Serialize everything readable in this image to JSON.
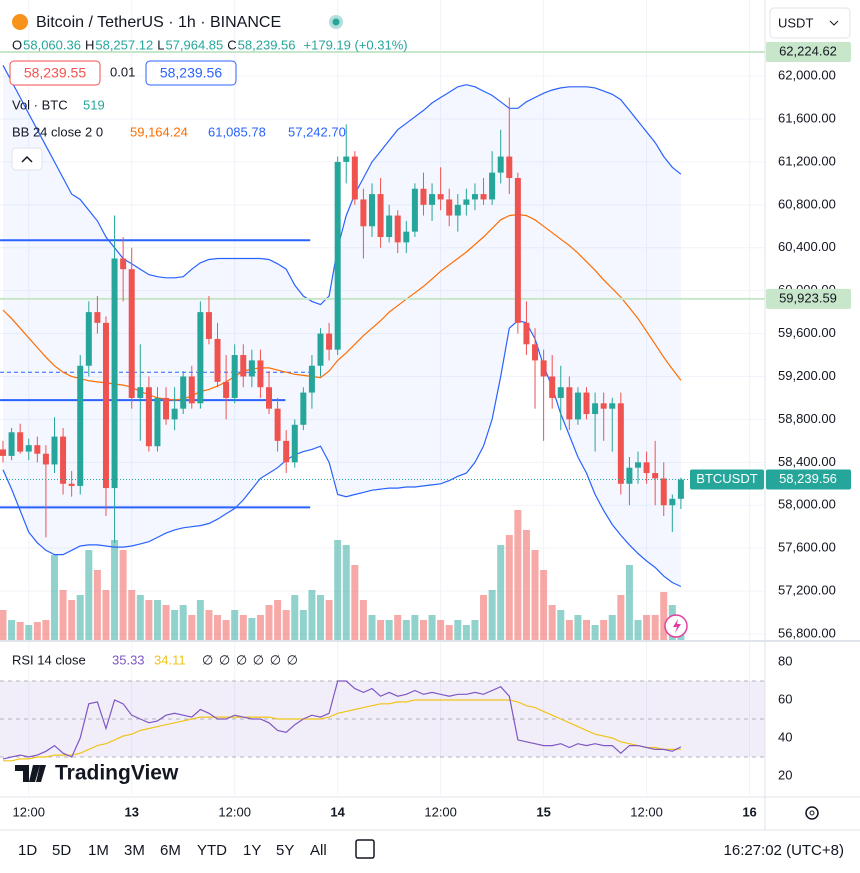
{
  "header": {
    "title": "Bitcoin / TetherUS · 1h · BINANCE",
    "ohlc": [
      {
        "key": "O",
        "value": "58,060.36"
      },
      {
        "key": "H",
        "value": "58,257.12"
      },
      {
        "key": "L",
        "value": "57,964.85"
      },
      {
        "key": "C",
        "value": "58,239.56"
      }
    ],
    "change": "+179.19 (+0.31%)"
  },
  "currency": "USDT",
  "order": {
    "sell": "58,239.55",
    "quantity": "0.01",
    "buy": "58,239.56"
  },
  "toolbar": {
    "ranges": [
      "1D",
      "5D",
      "1M",
      "3M",
      "6M",
      "YTD",
      "1Y",
      "5Y",
      "All"
    ],
    "clock": "16:27:02 (UTC+8)"
  },
  "brand": "TradingView",
  "chart_data": {
    "type": "candlestick",
    "open": [
      58520,
      58460,
      58680,
      58500,
      58560,
      58480,
      58380,
      58640,
      58200,
      58180,
      59300,
      59800,
      59700,
      58160,
      60300,
      60200,
      59000,
      59100,
      58550,
      59000,
      58800,
      58900,
      59200,
      58950,
      59800,
      59550,
      59150,
      59000,
      59400,
      59200,
      59350,
      59100,
      58900,
      58600,
      58400,
      58750,
      59050,
      59300,
      59600,
      59450,
      61200,
      61250,
      60850,
      60600,
      60900,
      60500,
      60700,
      60450,
      60550,
      60950,
      60800,
      60900,
      60850,
      60700,
      60800,
      60850,
      60900,
      60850,
      61100,
      61250,
      61050,
      59700,
      59500,
      59350,
      59200,
      59000,
      59100,
      58800,
      59050,
      58850,
      58950,
      58900,
      58950,
      58200,
      58350,
      58400,
      58300,
      58250,
      58000,
      58060.36
    ],
    "high": [
      58600,
      58720,
      58760,
      58620,
      58640,
      58560,
      58820,
      58720,
      58320,
      59400,
      59900,
      59950,
      59760,
      60700,
      60500,
      60400,
      59500,
      59200,
      59100,
      59100,
      59100,
      59250,
      59300,
      59900,
      59950,
      59700,
      59400,
      59500,
      59500,
      59450,
      59450,
      59250,
      59000,
      58700,
      58800,
      59100,
      59400,
      59650,
      59700,
      61250,
      61550,
      61300,
      60950,
      61000,
      61050,
      60800,
      60750,
      60650,
      61000,
      61100,
      61000,
      61150,
      60950,
      60900,
      60950,
      61000,
      61050,
      61300,
      61500,
      61800,
      61100,
      59900,
      59650,
      59450,
      59400,
      59300,
      59200,
      59100,
      59100,
      59050,
      59050,
      59000,
      59050,
      58450,
      58500,
      58500,
      58600,
      58400,
      58100,
      58257.12
    ],
    "low": [
      58400,
      58420,
      58480,
      58420,
      58400,
      57700,
      58300,
      58100,
      58080,
      58100,
      59200,
      59600,
      57900,
      57650,
      59900,
      58900,
      58600,
      58500,
      58500,
      58750,
      58700,
      58850,
      58900,
      58900,
      59500,
      59100,
      58800,
      58950,
      59100,
      59100,
      59000,
      58850,
      58500,
      58300,
      58350,
      58700,
      58900,
      59200,
      59350,
      59400,
      61000,
      60800,
      60300,
      60500,
      60400,
      60450,
      60350,
      60350,
      60500,
      60700,
      60650,
      60750,
      60600,
      60550,
      60700,
      60750,
      60800,
      60800,
      61000,
      60900,
      59600,
      59400,
      58900,
      58600,
      58900,
      58700,
      58700,
      58750,
      58800,
      58500,
      58600,
      58500,
      58100,
      58000,
      58200,
      58200,
      58000,
      57900,
      57750,
      57964.85
    ],
    "close": [
      58460,
      58680,
      58500,
      58560,
      58480,
      58380,
      58640,
      58200,
      58180,
      59300,
      59800,
      59700,
      58160,
      60300,
      60200,
      59000,
      59100,
      58550,
      59000,
      58800,
      58900,
      59200,
      58950,
      59800,
      59550,
      59150,
      59000,
      59400,
      59200,
      59350,
      59100,
      58900,
      58600,
      58400,
      58750,
      59050,
      59300,
      59600,
      59450,
      61200,
      61250,
      60850,
      60600,
      60900,
      60500,
      60700,
      60450,
      60550,
      60950,
      60800,
      60900,
      60850,
      60700,
      60800,
      60850,
      60900,
      60850,
      61100,
      61250,
      61050,
      59700,
      59500,
      59350,
      59200,
      59000,
      59100,
      58800,
      59050,
      58850,
      58950,
      58900,
      58950,
      58200,
      58350,
      58400,
      58300,
      58250,
      58000,
      58060,
      58239.56
    ],
    "up_color": "#26a69a",
    "down_color": "#ef5350",
    "ylim": [
      56744,
      62709
    ],
    "yticks": [
      {
        "value": 56800,
        "label": "56,800.00"
      },
      {
        "value": 57200,
        "label": "57,200.00"
      },
      {
        "value": 57600,
        "label": "57,600.00"
      },
      {
        "value": 58000,
        "label": "58,000.00"
      },
      {
        "value": 58400,
        "label": "58,400.00"
      },
      {
        "value": 58800,
        "label": "58,800.00"
      },
      {
        "value": 59200,
        "label": "59,200.00"
      },
      {
        "value": 59600,
        "label": "59,600.00"
      },
      {
        "value": 60000,
        "label": "60,000.00"
      },
      {
        "value": 60400,
        "label": "60,400.00"
      },
      {
        "value": 60800,
        "label": "60,800.00"
      },
      {
        "value": 61200,
        "label": "61,200.00"
      },
      {
        "value": 61600,
        "label": "61,600.00"
      },
      {
        "value": 62000,
        "label": "62,000.00"
      }
    ],
    "xlim": [
      -0.35,
      88.8
    ],
    "xticks": [
      {
        "value": 3,
        "label": "12:00"
      },
      {
        "value": 15,
        "label": "13"
      },
      {
        "value": 27,
        "label": "12:00"
      },
      {
        "value": 39,
        "label": "14"
      },
      {
        "value": 51,
        "label": "12:00"
      },
      {
        "value": 63,
        "label": "15"
      },
      {
        "value": 75,
        "label": "12:00"
      },
      {
        "value": 87,
        "label": "16"
      }
    ],
    "grid": true,
    "volume": {
      "name": "Vol · BTC",
      "values": [
        1050,
        700,
        630,
        525,
        630,
        700,
        2975,
        1750,
        1400,
        1575,
        3150,
        2450,
        1750,
        3500,
        3150,
        1750,
        1575,
        1400,
        1400,
        1225,
        1050,
        1225,
        875,
        1400,
        1050,
        875,
        700,
        1050,
        875,
        770,
        875,
        1225,
        1400,
        1050,
        1575,
        1050,
        1750,
        1575,
        1400,
        3500,
        3325,
        2625,
        1400,
        875,
        700,
        700,
        875,
        700,
        875,
        700,
        875,
        700,
        525,
        700,
        525,
        700,
        1575,
        1750,
        3325,
        3675,
        4550,
        3850,
        3150,
        2450,
        1225,
        1050,
        700,
        875,
        700,
        525,
        700,
        875,
        1575,
        2625,
        700,
        875,
        875,
        1680,
        1225,
        519
      ]
    },
    "bollinger": {
      "name": "BB 24 close 2 0",
      "basis_color": "#ff6d00",
      "band_color": "#2962ff",
      "upper": [
        62100,
        61950,
        61800,
        61650,
        61500,
        61350,
        61200,
        61050,
        60900,
        60850,
        60750,
        60650,
        60500,
        60400,
        60300,
        60250,
        60200,
        60150,
        60130,
        60120,
        60120,
        60130,
        60200,
        60260,
        60290,
        60300,
        60300,
        60300,
        60300,
        60300,
        60300,
        60290,
        60250,
        60200,
        60050,
        59950,
        59900,
        59870,
        59950,
        60400,
        60700,
        60900,
        61050,
        61200,
        61300,
        61400,
        61500,
        61560,
        61620,
        61680,
        61750,
        61800,
        61850,
        61900,
        61920,
        61900,
        61860,
        61820,
        61760,
        61700,
        61700,
        61760,
        61800,
        61840,
        61870,
        61890,
        61900,
        61900,
        61900,
        61890,
        61860,
        61830,
        61780,
        61680,
        61580,
        61480,
        61380,
        61250,
        61150,
        61085.78
      ],
      "basis": [
        59820,
        59740,
        59650,
        59560,
        59470,
        59380,
        59300,
        59240,
        59200,
        59180,
        59160,
        59150,
        59140,
        59130,
        59120,
        59100,
        59060,
        59030,
        59000,
        58990,
        58980,
        58990,
        59020,
        59060,
        59080,
        59110,
        59150,
        59200,
        59250,
        59270,
        59280,
        59280,
        59260,
        59240,
        59220,
        59210,
        59200,
        59190,
        59250,
        59350,
        59420,
        59500,
        59580,
        59650,
        59720,
        59800,
        59860,
        59920,
        59980,
        60040,
        60110,
        60180,
        60240,
        60300,
        60360,
        60430,
        60500,
        60580,
        60660,
        60700,
        60710,
        60700,
        60660,
        60600,
        60540,
        60480,
        60420,
        60350,
        60270,
        60190,
        60100,
        60020,
        59940,
        59840,
        59740,
        59620,
        59500,
        59380,
        59270,
        59164.24
      ],
      "lower": [
        58330,
        58150,
        57950,
        57750,
        57650,
        57580,
        57540,
        57540,
        57580,
        57620,
        57630,
        57630,
        57620,
        57610,
        57610,
        57620,
        57640,
        57660,
        57700,
        57740,
        57770,
        57790,
        57800,
        57810,
        57830,
        57870,
        57920,
        57970,
        58050,
        58150,
        58250,
        58300,
        58350,
        58420,
        58470,
        58500,
        58520,
        58550,
        58400,
        58100,
        58080,
        58100,
        58120,
        58140,
        58150,
        58160,
        58160,
        58170,
        58170,
        58180,
        58190,
        58200,
        58230,
        58270,
        58300,
        58400,
        58550,
        58800,
        59200,
        59650,
        59720,
        59700,
        59550,
        59300,
        59100,
        58850,
        58650,
        58450,
        58300,
        58100,
        57950,
        57820,
        57720,
        57630,
        57550,
        57480,
        57420,
        57340,
        57280,
        57242.7
      ],
      "value_labels": {
        "basis": "59,164.24",
        "upper": "61,085.78",
        "lower": "57,242.70"
      }
    },
    "price_lines": [
      {
        "value": 62224.62,
        "label": "62,224.62"
      },
      {
        "value": 59923.59,
        "label": "59,923.59"
      }
    ],
    "price_line_color": "#c8e6c9",
    "last_price": {
      "name": "BTCUSDT",
      "value": 58239.56,
      "label": "58,239.56"
    },
    "drawings": [
      {
        "value": 60470,
        "x_end": 35.8
      },
      {
        "value": 58980,
        "x_end": 32.9
      },
      {
        "value": 57980,
        "x_end": 35.8
      },
      {
        "value": 59240,
        "x_end": 35.8,
        "dashed": true
      }
    ],
    "drawing_color": "#2962ff",
    "rsi": {
      "name": "RSI 14 close",
      "color": "#7e57c2",
      "ma_color": "#f0c419",
      "ylim": [
        10,
        90
      ],
      "yticks": [
        20,
        40,
        60,
        80
      ],
      "levels": [
        30,
        50,
        70
      ],
      "placeholders": "∅ ∅ ∅ ∅ ∅ ∅",
      "values": [
        29,
        30,
        31,
        30,
        31,
        33,
        36,
        32,
        30,
        40,
        58,
        59,
        45,
        60,
        58,
        52,
        50,
        48,
        49,
        52,
        53,
        52,
        51,
        55,
        53,
        50,
        50,
        52,
        51,
        50,
        50,
        48,
        44,
        43,
        47,
        50,
        52,
        51,
        53,
        70,
        70,
        66,
        64,
        66,
        62,
        64,
        62,
        63,
        65,
        63,
        64,
        63,
        62,
        63,
        63,
        64,
        63,
        65,
        67,
        62,
        39,
        38,
        37,
        36,
        36,
        37,
        35,
        37,
        36,
        37,
        36,
        36,
        32,
        36,
        36,
        35,
        34,
        34,
        33,
        35.33
      ],
      "ma": [
        28,
        28,
        29,
        29,
        30,
        30,
        31,
        31,
        31,
        32,
        34,
        36,
        37,
        39,
        41,
        42,
        44,
        45,
        46,
        47,
        48,
        49,
        50,
        51,
        51,
        51,
        51,
        51,
        51,
        51,
        51,
        51,
        50,
        50,
        50,
        50,
        50,
        50,
        51,
        53,
        54,
        55,
        56,
        57,
        58,
        58,
        59,
        59,
        60,
        60,
        60,
        60,
        60,
        60,
        60,
        60,
        60,
        60,
        60,
        60,
        59,
        57,
        56,
        54,
        52,
        50,
        48,
        46,
        44,
        42,
        41,
        40,
        38,
        37,
        36,
        35,
        35,
        34,
        34,
        34.11
      ]
    }
  }
}
